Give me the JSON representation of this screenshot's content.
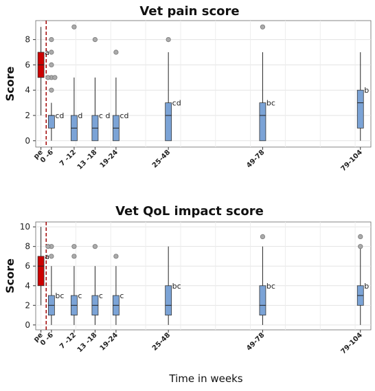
{
  "xlabel": "Time in weeks",
  "chart_data": [
    {
      "type": "box",
      "title": "Vet pain score",
      "ylabel": "Score",
      "ylim": [
        -0.5,
        9.5
      ],
      "yticks": [
        0,
        2,
        4,
        6,
        8
      ],
      "grid": true,
      "baseline_separator_after": "pe",
      "colors": {
        "baseline": "#cc0000",
        "followup": "#7ba3d6",
        "separator": "#a00000",
        "outlier": "#aaaaaa"
      },
      "categories": [
        {
          "label": "pe",
          "x": 0,
          "min": 2,
          "q1": 5,
          "median": 6,
          "q3": 7,
          "max": 9,
          "outliers": [],
          "group": "a"
        },
        {
          "label": "0 -6",
          "x": 3,
          "min": 0,
          "q1": 1,
          "median": 2,
          "q3": 2,
          "max": 3,
          "outliers": [
            4,
            5,
            5,
            5,
            6,
            7,
            8
          ],
          "group": "cd"
        },
        {
          "label": "7 -12",
          "x": 9.5,
          "min": 0,
          "q1": 0,
          "median": 1,
          "q3": 2,
          "max": 5,
          "outliers": [
            9
          ],
          "group": "d"
        },
        {
          "label": "13 -18",
          "x": 15.5,
          "min": 0,
          "q1": 0,
          "median": 1,
          "q3": 2,
          "max": 5,
          "outliers": [
            8
          ],
          "group": "c d"
        },
        {
          "label": "19-24",
          "x": 21.5,
          "min": 0,
          "q1": 0,
          "median": 1,
          "q3": 2,
          "max": 5,
          "outliers": [
            7
          ],
          "group": "cd"
        },
        {
          "label": "25-48",
          "x": 36.5,
          "min": 0,
          "q1": 0,
          "median": 2,
          "q3": 3,
          "max": 7,
          "outliers": [
            8
          ],
          "group": "cd"
        },
        {
          "label": "49-78",
          "x": 63.5,
          "min": 0,
          "q1": 0,
          "median": 2,
          "q3": 3,
          "max": 7,
          "outliers": [
            9
          ],
          "group": "bc"
        },
        {
          "label": "79-104",
          "x": 91.5,
          "min": 0,
          "q1": 1,
          "median": 3,
          "q3": 4,
          "max": 7,
          "outliers": [],
          "group": "b"
        }
      ]
    },
    {
      "type": "box",
      "title": "Vet QoL impact score",
      "ylabel": "Score",
      "ylim": [
        -0.5,
        10.5
      ],
      "yticks": [
        0,
        2,
        4,
        6,
        8,
        10
      ],
      "grid": true,
      "baseline_separator_after": "pe",
      "colors": {
        "baseline": "#cc0000",
        "followup": "#7ba3d6",
        "separator": "#a00000",
        "outlier": "#aaaaaa"
      },
      "categories": [
        {
          "label": "pe",
          "x": 0,
          "min": 2,
          "q1": 4,
          "median": 6,
          "q3": 7,
          "max": 10,
          "outliers": [],
          "group": "a"
        },
        {
          "label": "0 -6",
          "x": 3,
          "min": 0,
          "q1": 1,
          "median": 2,
          "q3": 3,
          "max": 6,
          "outliers": [
            7,
            8,
            8
          ],
          "group": "bc"
        },
        {
          "label": "7 -12",
          "x": 9.5,
          "min": 0,
          "q1": 1,
          "median": 2,
          "q3": 3,
          "max": 6,
          "outliers": [
            7,
            8
          ],
          "group": "c"
        },
        {
          "label": "13 -18",
          "x": 15.5,
          "min": 0,
          "q1": 1,
          "median": 2,
          "q3": 3,
          "max": 6,
          "outliers": [
            8
          ],
          "group": "c"
        },
        {
          "label": "19-24",
          "x": 21.5,
          "min": 0,
          "q1": 1,
          "median": 2,
          "q3": 3,
          "max": 6,
          "outliers": [
            7
          ],
          "group": "c"
        },
        {
          "label": "25-48",
          "x": 36.5,
          "min": 0,
          "q1": 1,
          "median": 2,
          "q3": 4,
          "max": 8,
          "outliers": [],
          "group": "bc"
        },
        {
          "label": "49-78",
          "x": 63.5,
          "min": 0,
          "q1": 1,
          "median": 2,
          "q3": 4,
          "max": 8,
          "outliers": [
            9
          ],
          "group": "bc"
        },
        {
          "label": "79-104",
          "x": 91.5,
          "min": 0,
          "q1": 2,
          "median": 3,
          "q3": 4,
          "max": 8,
          "outliers": [
            8,
            9
          ],
          "group": "b"
        }
      ]
    }
  ]
}
